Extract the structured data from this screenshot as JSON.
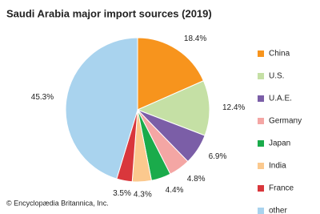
{
  "chart_data": {
    "type": "pie",
    "title": "Saudi Arabia major import sources (2019)",
    "categories": [
      "China",
      "U.S.",
      "U.A.E.",
      "Germany",
      "Japan",
      "India",
      "France",
      "other"
    ],
    "values": [
      18.4,
      12.4,
      6.9,
      4.8,
      4.4,
      4.3,
      3.5,
      45.3
    ],
    "value_labels": [
      "18.4%",
      "12.4%",
      "6.9%",
      "4.8%",
      "4.4%",
      "4.3%",
      "3.5%",
      "45.3%"
    ],
    "colors": [
      "#f7941d",
      "#c5e0a5",
      "#7b5ea7",
      "#f4a6a4",
      "#1aab4b",
      "#fbc98e",
      "#d9373c",
      "#a9d3ee"
    ],
    "legend": "right",
    "credit": "© Encyclopædia Britannica, Inc."
  }
}
